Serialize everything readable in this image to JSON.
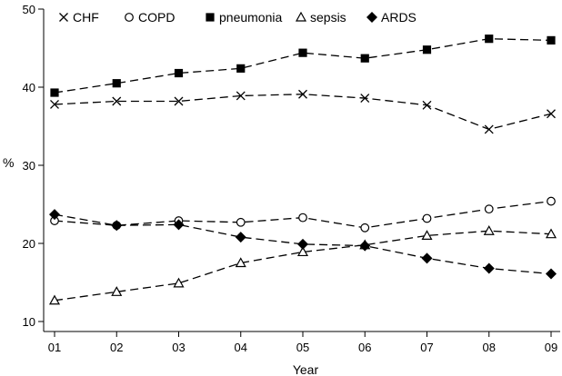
{
  "chart_data": {
    "type": "line",
    "title": "",
    "xlabel": "Year",
    "ylabel": "%",
    "categories": [
      "01",
      "02",
      "03",
      "04",
      "05",
      "06",
      "07",
      "08",
      "09"
    ],
    "ylim": [
      10,
      50
    ],
    "yticks": [
      10,
      20,
      30,
      40,
      50
    ],
    "grid": false,
    "legend_position": "top",
    "series": [
      {
        "name": "CHF",
        "marker": "x",
        "values": [
          37.8,
          38.2,
          38.2,
          38.9,
          39.1,
          38.6,
          37.7,
          34.6,
          36.6
        ]
      },
      {
        "name": "COPD",
        "marker": "open-circle",
        "values": [
          22.9,
          22.3,
          22.9,
          22.7,
          23.3,
          22.0,
          23.2,
          24.4,
          25.4
        ]
      },
      {
        "name": "pneumonia",
        "marker": "filled-square",
        "values": [
          39.3,
          40.5,
          41.8,
          42.4,
          44.4,
          43.7,
          44.8,
          46.2,
          46.0
        ]
      },
      {
        "name": "sepsis",
        "marker": "open-triangle",
        "values": [
          12.7,
          13.8,
          14.9,
          17.5,
          18.9,
          19.8,
          21.0,
          21.6,
          21.2
        ]
      },
      {
        "name": "ARDS",
        "marker": "filled-diamond",
        "values": [
          23.7,
          22.3,
          22.4,
          20.8,
          19.9,
          19.7,
          18.1,
          16.8,
          16.1
        ]
      }
    ]
  }
}
